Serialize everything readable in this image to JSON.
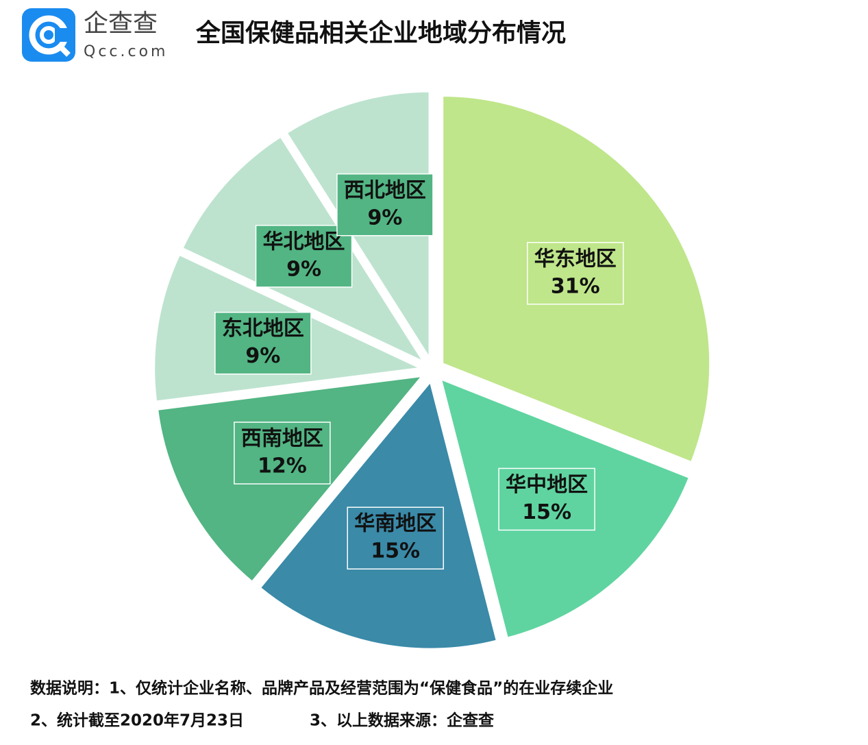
{
  "header": {
    "logo_name": "企查查",
    "logo_domain": "Qcc.com"
  },
  "chart_data": {
    "type": "pie",
    "title": "全国保健品相关企业地域分布情况",
    "categories": [
      "华东地区",
      "华中地区",
      "华南地区",
      "西南地区",
      "东北地区",
      "华北地区",
      "西北地区"
    ],
    "values": [
      31,
      15,
      15,
      12,
      9,
      9,
      9
    ],
    "value_labels": [
      "31%",
      "15%",
      "15%",
      "12%",
      "9%",
      "9%",
      "9%"
    ],
    "colors": [
      "#bfe68a",
      "#5fd4a0",
      "#3a8aa8",
      "#52b583",
      "#bde3cf",
      "#bde3cf",
      "#bde3cf"
    ],
    "label_box_colors": [
      "#bfe68a",
      "#5fd4a0",
      "#3a8aa8",
      "#52b583",
      "#52b583",
      "#52b583",
      "#52b583"
    ]
  },
  "footer": {
    "note_1": "数据说明：1、仅统计企业名称、品牌产品及经营范围为“保健食品”的在业存续企业",
    "note_2": "2、统计截至2020年7月23日",
    "note_3": "3、以上数据来源：企查查"
  }
}
